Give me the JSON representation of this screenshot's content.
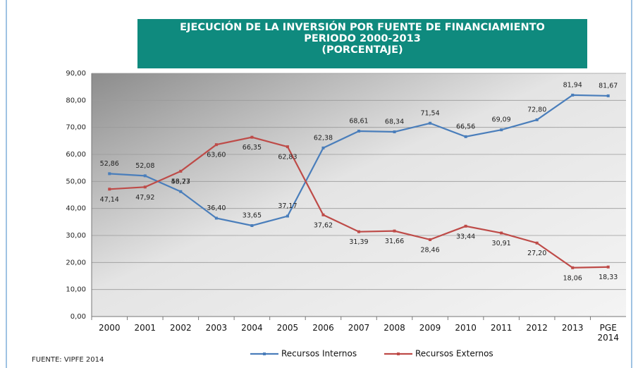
{
  "chart_data": {
    "type": "line",
    "title_lines": [
      "EJECUCIÓN DE LA INVERSIÓN POR FUENTE DE FINANCIAMIENTO",
      "PERIODO 2000-2013",
      "(PORCENTAJE)"
    ],
    "source": "FUENTE: VIPFE 2014",
    "categories": [
      "2000",
      "2001",
      "2002",
      "2003",
      "2004",
      "2005",
      "2006",
      "2007",
      "2008",
      "2009",
      "2010",
      "2011",
      "2012",
      "2013",
      "PGE 2014"
    ],
    "series": [
      {
        "name": "Recursos Internos",
        "color": "#4a7ebb",
        "values": [
          52.86,
          52.08,
          46.23,
          36.4,
          33.65,
          37.17,
          62.38,
          68.61,
          68.34,
          71.54,
          66.56,
          69.09,
          72.8,
          81.94,
          81.67
        ],
        "value_labels": [
          "52,86",
          "52,08",
          "46,23",
          "36,40",
          "33,65",
          "37,17",
          "62,38",
          "68,61",
          "68,34",
          "71,54",
          "66,56",
          "69,09",
          "72,80",
          "81,94",
          "81,67"
        ]
      },
      {
        "name": "Recursos Externos",
        "color": "#be4b48",
        "values": [
          47.14,
          47.92,
          53.77,
          63.6,
          66.35,
          62.83,
          37.62,
          31.39,
          31.66,
          28.46,
          33.44,
          30.91,
          27.2,
          18.06,
          18.33
        ],
        "value_labels": [
          "47,14",
          "47,92",
          "53,77",
          "63,60",
          "66,35",
          "62,83",
          "37,62",
          "31,39",
          "31,66",
          "28,46",
          "33,44",
          "30,91",
          "27,20",
          "18,06",
          "18,33"
        ]
      }
    ],
    "ylim": [
      0,
      90
    ],
    "yticks": [
      {
        "value": 0,
        "label": "0,00"
      },
      {
        "value": 10,
        "label": "10,00"
      },
      {
        "value": 20,
        "label": "20,00"
      },
      {
        "value": 30,
        "label": "30,00"
      },
      {
        "value": 40,
        "label": "40,00"
      },
      {
        "value": 50,
        "label": "50,00"
      },
      {
        "value": 60,
        "label": "60,00"
      },
      {
        "value": 70,
        "label": "70,00"
      },
      {
        "value": 80,
        "label": "80,00"
      },
      {
        "value": 90,
        "label": "90,00"
      }
    ],
    "grid": true,
    "legend": "bottom"
  }
}
